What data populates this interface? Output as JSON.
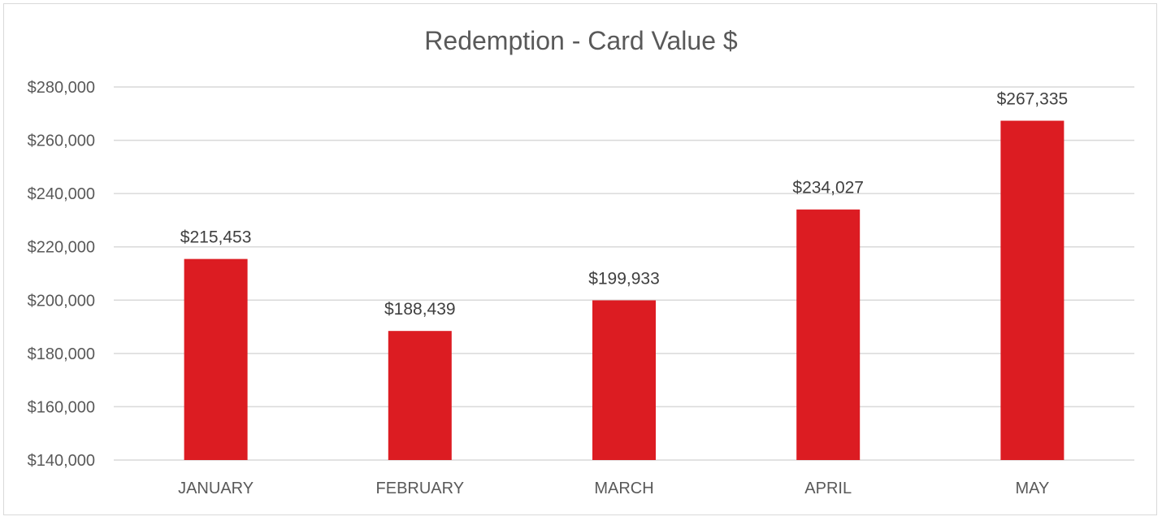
{
  "chart_data": {
    "type": "bar",
    "title": "Redemption - Card Value $",
    "categories": [
      "JANUARY",
      "FEBRUARY",
      "MARCH",
      "APRIL",
      "MAY"
    ],
    "values": [
      215453,
      188439,
      199933,
      234027,
      267335
    ],
    "data_labels": [
      "$215,453",
      "$188,439",
      "$199,933",
      "$234,027",
      "$267,335"
    ],
    "ylim": [
      140000,
      280000
    ],
    "yticks": [
      140000,
      160000,
      180000,
      200000,
      220000,
      240000,
      260000,
      280000
    ],
    "ytick_labels": [
      "$140,000",
      "$160,000",
      "$180,000",
      "$200,000",
      "$220,000",
      "$240,000",
      "$260,000",
      "$280,000"
    ],
    "xlabel": "",
    "ylabel": "",
    "grid": true,
    "legend": "none",
    "bar_color": "#dc1c22"
  }
}
